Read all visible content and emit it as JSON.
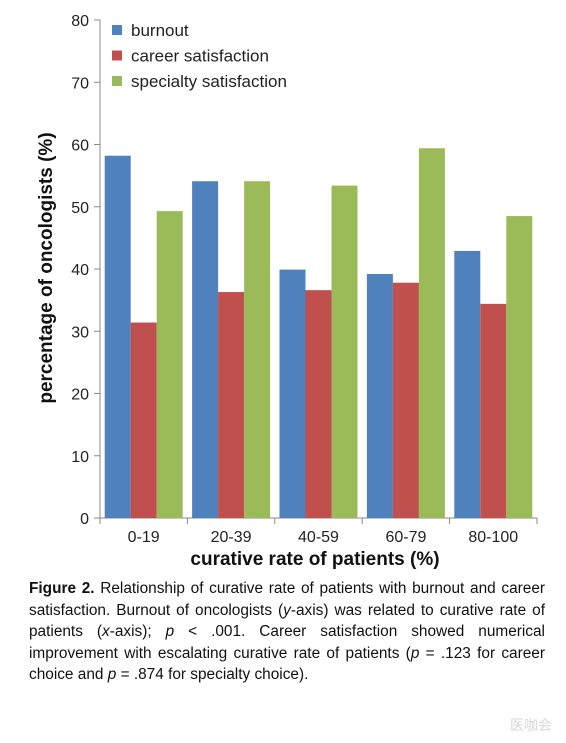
{
  "chart_data": {
    "type": "bar",
    "title": "",
    "xlabel": "curative rate of patients (%)",
    "ylabel": "percentage of oncologists (%)",
    "ylim": [
      0,
      80
    ],
    "yticks": [
      0,
      10,
      20,
      30,
      40,
      50,
      60,
      70,
      80
    ],
    "grid": false,
    "legend_position": "top-left",
    "categories": [
      "0-19",
      "20-39",
      "40-59",
      "60-79",
      "80-100"
    ],
    "series": [
      {
        "name": "burnout",
        "color": "#4f81bd",
        "values": [
          58.2,
          54.1,
          39.9,
          39.2,
          42.9
        ]
      },
      {
        "name": "career satisfaction",
        "color": "#c0504d",
        "values": [
          31.4,
          36.3,
          36.6,
          37.8,
          34.4
        ]
      },
      {
        "name": "specialty satisfaction",
        "color": "#9bbb59",
        "values": [
          49.3,
          54.1,
          53.4,
          59.4,
          48.5
        ]
      }
    ]
  },
  "caption": {
    "label": "Figure 2.",
    "p1": " Relationship of curative rate of patients with burnout and career satisfaction. Burnout of oncologists (",
    "y_var": "y",
    "p2": "-axis) was related to curative rate of patients (",
    "x_var": "x",
    "p3": "-axis); ",
    "p_sym1": "p",
    "p4": " < .001. Career satisfaction showed numerical improvement with escalating curative rate of patients (",
    "p_sym2": "p",
    "p5": " = .123 for career choice and ",
    "p_sym3": "p",
    "p6": " = .874 for specialty choice)."
  },
  "watermark": "医咖会"
}
